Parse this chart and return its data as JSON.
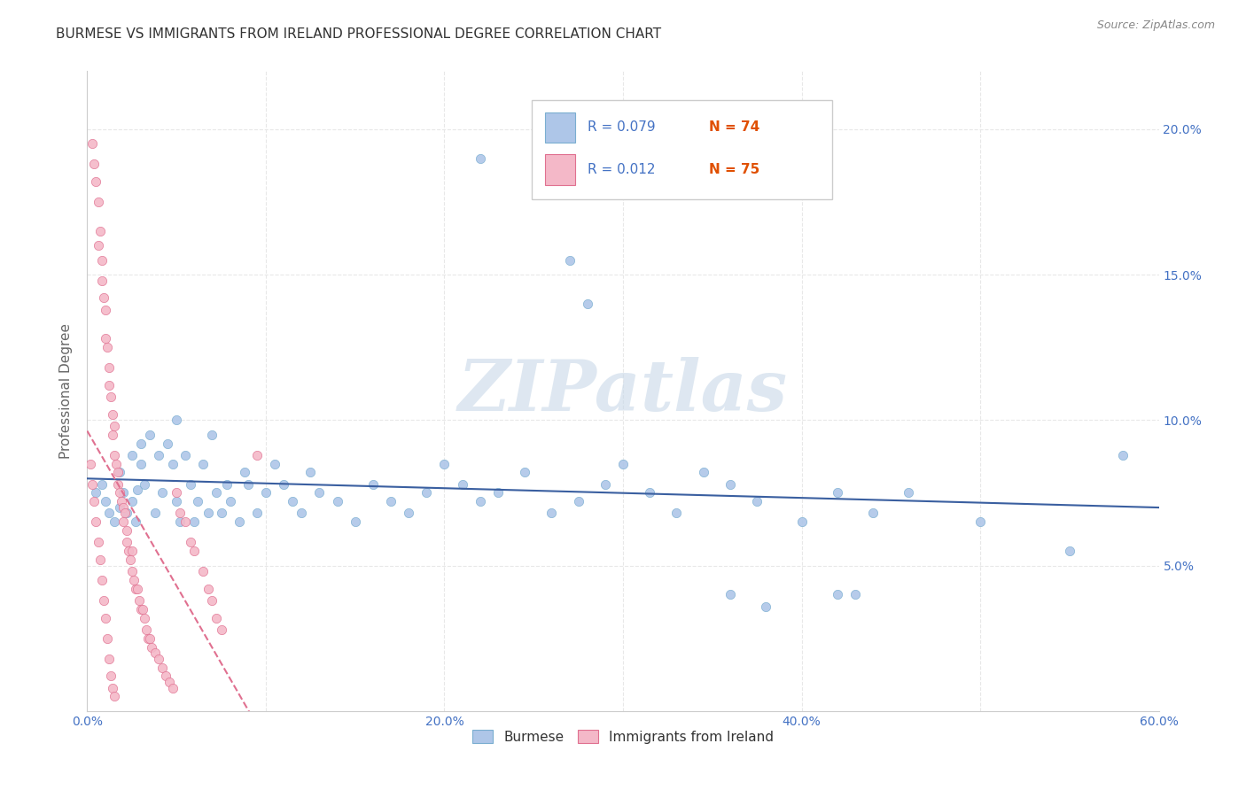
{
  "title": "BURMESE VS IMMIGRANTS FROM IRELAND PROFESSIONAL DEGREE CORRELATION CHART",
  "source": "Source: ZipAtlas.com",
  "ylabel": "Professional Degree",
  "xlim": [
    0.0,
    0.6
  ],
  "ylim": [
    0.0,
    0.22
  ],
  "xticks": [
    0.0,
    0.1,
    0.2,
    0.3,
    0.4,
    0.5,
    0.6
  ],
  "xtick_labels": [
    "0.0%",
    "",
    "20.0%",
    "",
    "40.0%",
    "",
    "60.0%"
  ],
  "yticks": [
    0.0,
    0.05,
    0.1,
    0.15,
    0.2
  ],
  "ytick_labels": [
    "",
    "5.0%",
    "10.0%",
    "15.0%",
    "20.0%"
  ],
  "burmese_color": "#aec6e8",
  "burmese_edge_color": "#7aaed0",
  "ireland_color": "#f4b8c8",
  "ireland_edge_color": "#e07090",
  "burmese_line_color": "#3a5fa0",
  "ireland_line_color": "#e07090",
  "watermark_color": "#c8d8e8",
  "background_color": "#ffffff",
  "grid_color": "#e8e8e8",
  "title_color": "#333333",
  "tick_color": "#4472c4",
  "ylabel_color": "#666666",
  "source_color": "#888888",
  "legend_r1": "R = 0.079",
  "legend_n1": "N = 74",
  "legend_r2": "R = 0.012",
  "legend_n2": "N = 75",
  "legend_label1": "Burmese",
  "legend_label2": "Immigrants from Ireland",
  "burmese_x": [
    0.005,
    0.008,
    0.01,
    0.012,
    0.015,
    0.018,
    0.018,
    0.02,
    0.022,
    0.025,
    0.025,
    0.027,
    0.028,
    0.03,
    0.03,
    0.032,
    0.035,
    0.038,
    0.04,
    0.042,
    0.045,
    0.048,
    0.05,
    0.05,
    0.052,
    0.055,
    0.058,
    0.06,
    0.062,
    0.065,
    0.068,
    0.07,
    0.072,
    0.075,
    0.078,
    0.08,
    0.085,
    0.088,
    0.09,
    0.095,
    0.1,
    0.105,
    0.11,
    0.115,
    0.12,
    0.125,
    0.13,
    0.14,
    0.15,
    0.16,
    0.17,
    0.18,
    0.19,
    0.2,
    0.21,
    0.22,
    0.23,
    0.245,
    0.26,
    0.275,
    0.29,
    0.3,
    0.315,
    0.33,
    0.345,
    0.36,
    0.375,
    0.4,
    0.42,
    0.44,
    0.46,
    0.5,
    0.55,
    0.58
  ],
  "burmese_y": [
    0.075,
    0.078,
    0.072,
    0.068,
    0.065,
    0.082,
    0.07,
    0.075,
    0.068,
    0.088,
    0.072,
    0.065,
    0.076,
    0.085,
    0.092,
    0.078,
    0.095,
    0.068,
    0.088,
    0.075,
    0.092,
    0.085,
    0.072,
    0.1,
    0.065,
    0.088,
    0.078,
    0.065,
    0.072,
    0.085,
    0.068,
    0.095,
    0.075,
    0.068,
    0.078,
    0.072,
    0.065,
    0.082,
    0.078,
    0.068,
    0.075,
    0.085,
    0.078,
    0.072,
    0.068,
    0.082,
    0.075,
    0.072,
    0.065,
    0.078,
    0.072,
    0.068,
    0.075,
    0.085,
    0.078,
    0.072,
    0.075,
    0.082,
    0.068,
    0.072,
    0.078,
    0.085,
    0.075,
    0.068,
    0.082,
    0.078,
    0.072,
    0.065,
    0.075,
    0.068,
    0.075,
    0.065,
    0.055,
    0.088
  ],
  "burmese_y_outliers": [
    0.19,
    0.155,
    0.14,
    0.04,
    0.036,
    0.04,
    0.04
  ],
  "burmese_x_outliers": [
    0.22,
    0.27,
    0.28,
    0.36,
    0.38,
    0.42,
    0.43
  ],
  "ireland_x": [
    0.003,
    0.004,
    0.005,
    0.006,
    0.006,
    0.007,
    0.008,
    0.008,
    0.009,
    0.01,
    0.01,
    0.011,
    0.012,
    0.012,
    0.013,
    0.014,
    0.014,
    0.015,
    0.015,
    0.016,
    0.017,
    0.017,
    0.018,
    0.019,
    0.02,
    0.02,
    0.021,
    0.022,
    0.022,
    0.023,
    0.024,
    0.025,
    0.025,
    0.026,
    0.027,
    0.028,
    0.029,
    0.03,
    0.031,
    0.032,
    0.033,
    0.034,
    0.035,
    0.036,
    0.038,
    0.04,
    0.042,
    0.044,
    0.046,
    0.048,
    0.05,
    0.052,
    0.055,
    0.058,
    0.06,
    0.065,
    0.068,
    0.07,
    0.072,
    0.075,
    0.002,
    0.003,
    0.004,
    0.005,
    0.006,
    0.007,
    0.008,
    0.009,
    0.01,
    0.011,
    0.012,
    0.013,
    0.014,
    0.015,
    0.095
  ],
  "ireland_y": [
    0.195,
    0.188,
    0.182,
    0.175,
    0.16,
    0.165,
    0.155,
    0.148,
    0.142,
    0.138,
    0.128,
    0.125,
    0.118,
    0.112,
    0.108,
    0.102,
    0.095,
    0.098,
    0.088,
    0.085,
    0.082,
    0.078,
    0.075,
    0.072,
    0.07,
    0.065,
    0.068,
    0.062,
    0.058,
    0.055,
    0.052,
    0.055,
    0.048,
    0.045,
    0.042,
    0.042,
    0.038,
    0.035,
    0.035,
    0.032,
    0.028,
    0.025,
    0.025,
    0.022,
    0.02,
    0.018,
    0.015,
    0.012,
    0.01,
    0.008,
    0.075,
    0.068,
    0.065,
    0.058,
    0.055,
    0.048,
    0.042,
    0.038,
    0.032,
    0.028,
    0.085,
    0.078,
    0.072,
    0.065,
    0.058,
    0.052,
    0.045,
    0.038,
    0.032,
    0.025,
    0.018,
    0.012,
    0.008,
    0.005,
    0.088
  ]
}
